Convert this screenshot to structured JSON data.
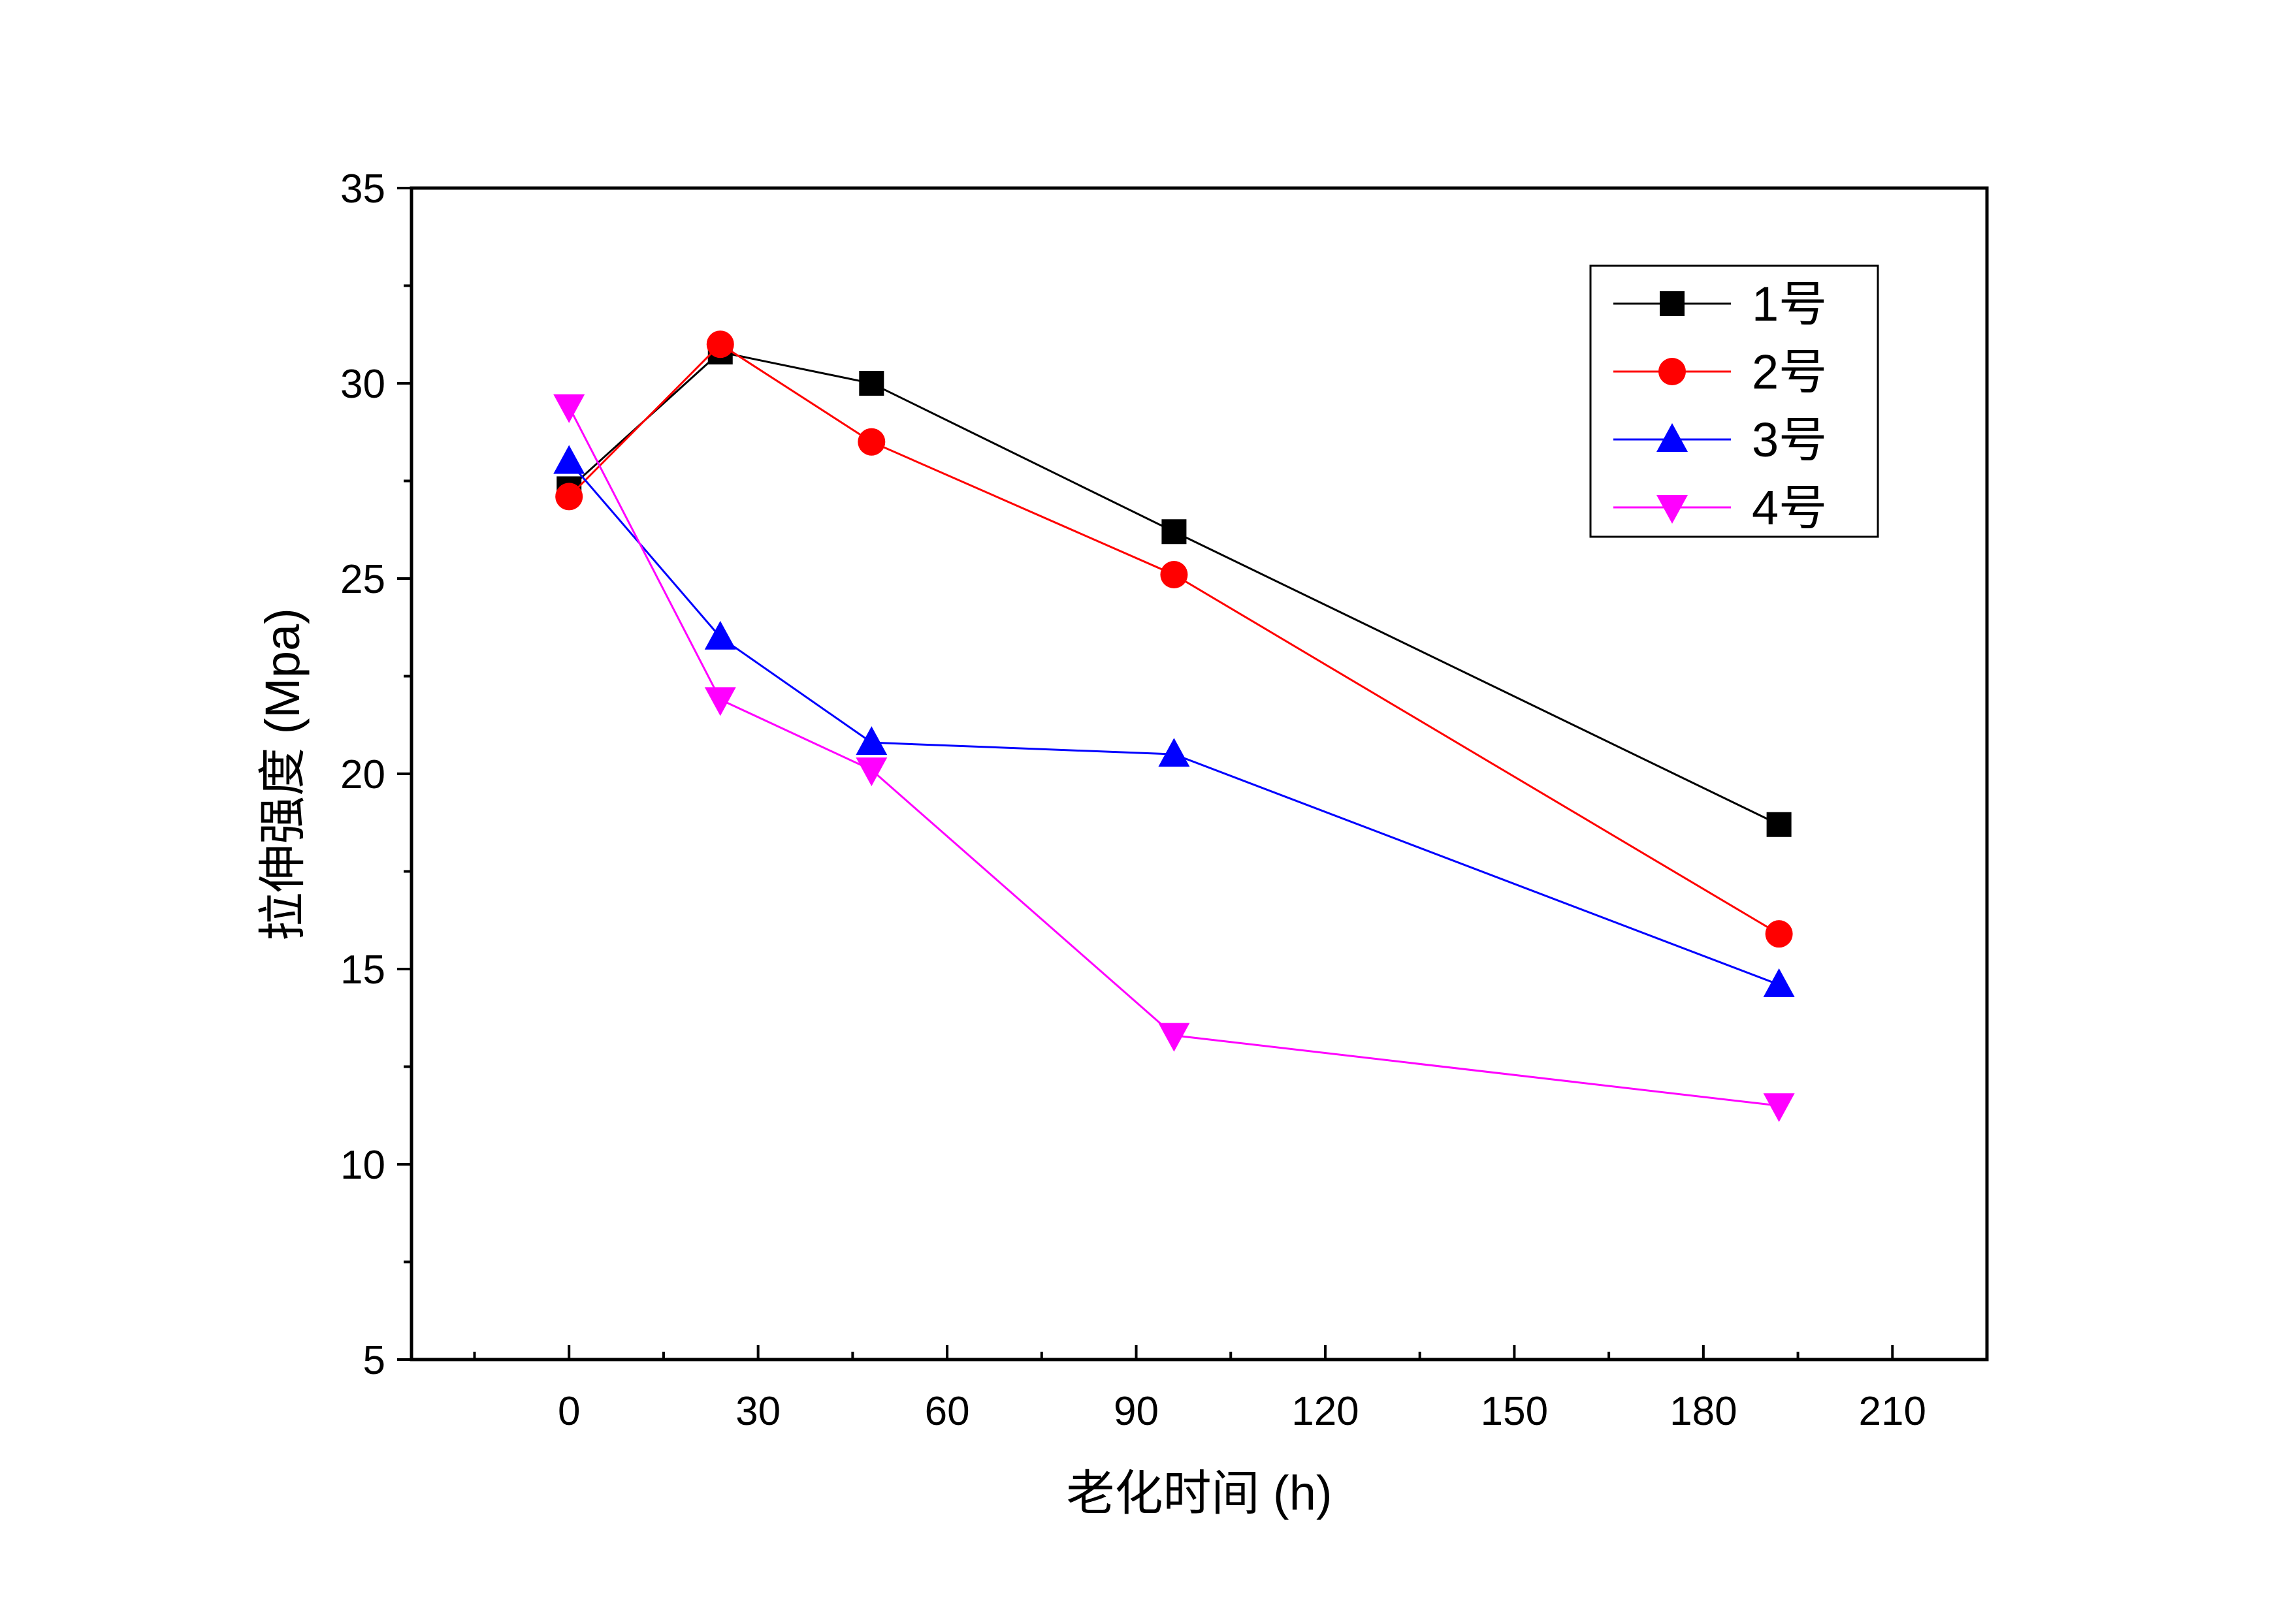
{
  "chart_data": {
    "type": "line",
    "xlabel": "老化时间 (h)",
    "ylabel": "拉伸强度 (Mpa)",
    "xlim": [
      -25,
      225
    ],
    "ylim": [
      5,
      35
    ],
    "xticks": [
      0,
      30,
      60,
      90,
      120,
      150,
      180,
      210
    ],
    "yticks": [
      5,
      10,
      15,
      20,
      25,
      30,
      35
    ],
    "x_minor_step": 15,
    "y_minor_step": 2.5,
    "grid": false,
    "legend_position": "top-right",
    "series": [
      {
        "name": "1号",
        "color": "#000000",
        "marker": "square",
        "x": [
          0,
          24,
          48,
          96,
          192
        ],
        "y": [
          27.3,
          30.8,
          30.0,
          26.2,
          18.7
        ]
      },
      {
        "name": "2号",
        "color": "#ff0000",
        "marker": "circle",
        "x": [
          0,
          24,
          48,
          96,
          192
        ],
        "y": [
          27.1,
          31.0,
          28.5,
          25.1,
          15.9
        ]
      },
      {
        "name": "3号",
        "color": "#0000ff",
        "marker": "triangle-up",
        "x": [
          0,
          24,
          48,
          96,
          192
        ],
        "y": [
          28.0,
          23.5,
          20.8,
          20.5,
          14.6
        ]
      },
      {
        "name": "4号",
        "color": "#ff00ff",
        "marker": "triangle-down",
        "x": [
          0,
          24,
          48,
          96,
          192
        ],
        "y": [
          29.4,
          21.9,
          20.1,
          13.3,
          11.5
        ]
      }
    ]
  }
}
